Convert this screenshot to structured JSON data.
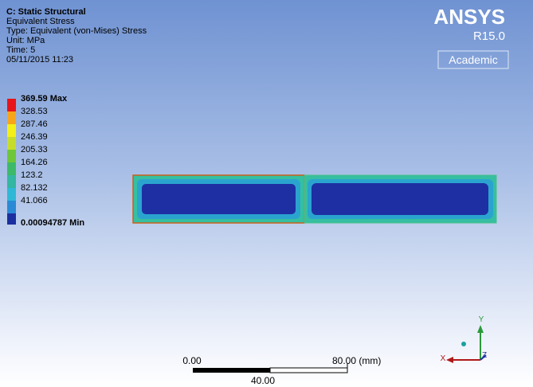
{
  "header": {
    "lines": [
      "C: Static Structural",
      "Equivalent Stress",
      "Type: Equivalent (von-Mises) Stress",
      "Unit: MPa",
      "Time: 5",
      "05/11/2015 11:23"
    ]
  },
  "legend": {
    "labels": [
      "369.59 Max",
      "328.53",
      "287.46",
      "246.39",
      "205.33",
      "164.26",
      "123.2",
      "82.132",
      "41.066",
      "0.00094787 Min"
    ]
  },
  "logo": {
    "brand": "ANSYS",
    "release": "R15.0",
    "edition": "Academic"
  },
  "scale_bar": {
    "start": "0.00",
    "end": "80.00 (mm)",
    "middle": "40.00"
  },
  "triad": {
    "x": "X",
    "y": "Y",
    "z": "Z"
  }
}
